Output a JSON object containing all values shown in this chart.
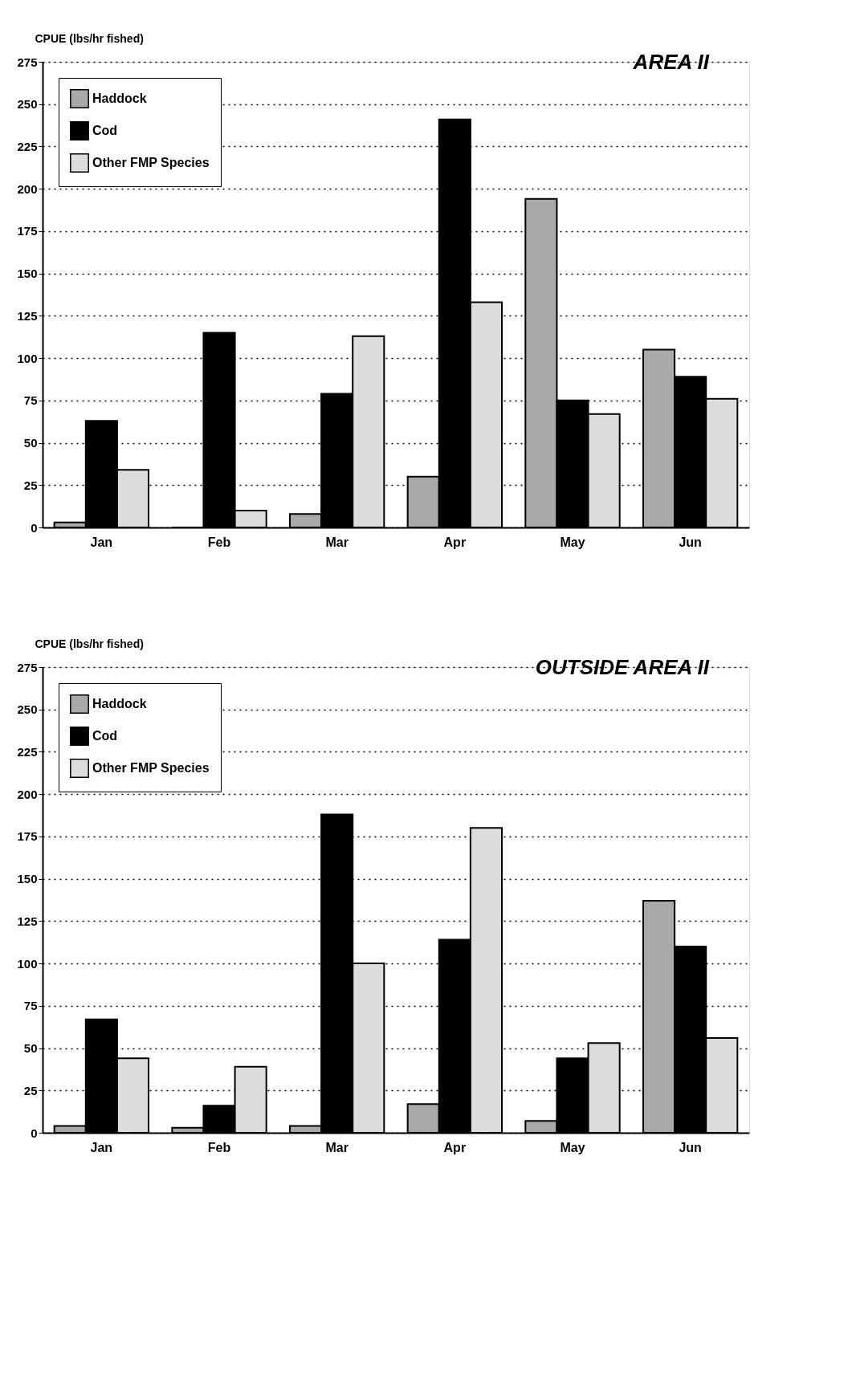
{
  "chart_data": [
    {
      "type": "bar",
      "title": "AREA II",
      "ylabel": "CPUE (lbs/hr fished)",
      "categories": [
        "Jan",
        "Feb",
        "Mar",
        "Apr",
        "May",
        "Jun"
      ],
      "series": [
        {
          "name": "Haddock",
          "color": "#a9a9a9",
          "values": [
            3,
            0,
            8,
            30,
            194,
            105
          ]
        },
        {
          "name": "Cod",
          "color": "#000000",
          "values": [
            63,
            115,
            79,
            241,
            75,
            89
          ]
        },
        {
          "name": "Other FMP Species",
          "color": "#dcdcdc",
          "values": [
            34,
            10,
            113,
            133,
            67,
            76
          ]
        }
      ],
      "ylim": [
        0,
        275
      ],
      "yticks": [
        0,
        25,
        50,
        75,
        100,
        125,
        150,
        175,
        200,
        225,
        250,
        275
      ],
      "grid": "y",
      "legend": "top left"
    },
    {
      "type": "bar",
      "title": "OUTSIDE AREA II",
      "ylabel": "CPUE (lbs/hr fished)",
      "categories": [
        "Jan",
        "Feb",
        "Mar",
        "Apr",
        "May",
        "Jun"
      ],
      "series": [
        {
          "name": "Haddock",
          "color": "#a9a9a9",
          "values": [
            4,
            3,
            4,
            17,
            7,
            137
          ]
        },
        {
          "name": "Cod",
          "color": "#000000",
          "values": [
            67,
            16,
            188,
            114,
            44,
            110
          ]
        },
        {
          "name": "Other FMP Species",
          "color": "#dcdcdc",
          "values": [
            44,
            39,
            100,
            180,
            53,
            56
          ]
        }
      ],
      "ylim": [
        0,
        275
      ],
      "yticks": [
        0,
        25,
        50,
        75,
        100,
        125,
        150,
        175,
        200,
        225,
        250,
        275
      ],
      "grid": "y",
      "legend": "top left"
    }
  ]
}
